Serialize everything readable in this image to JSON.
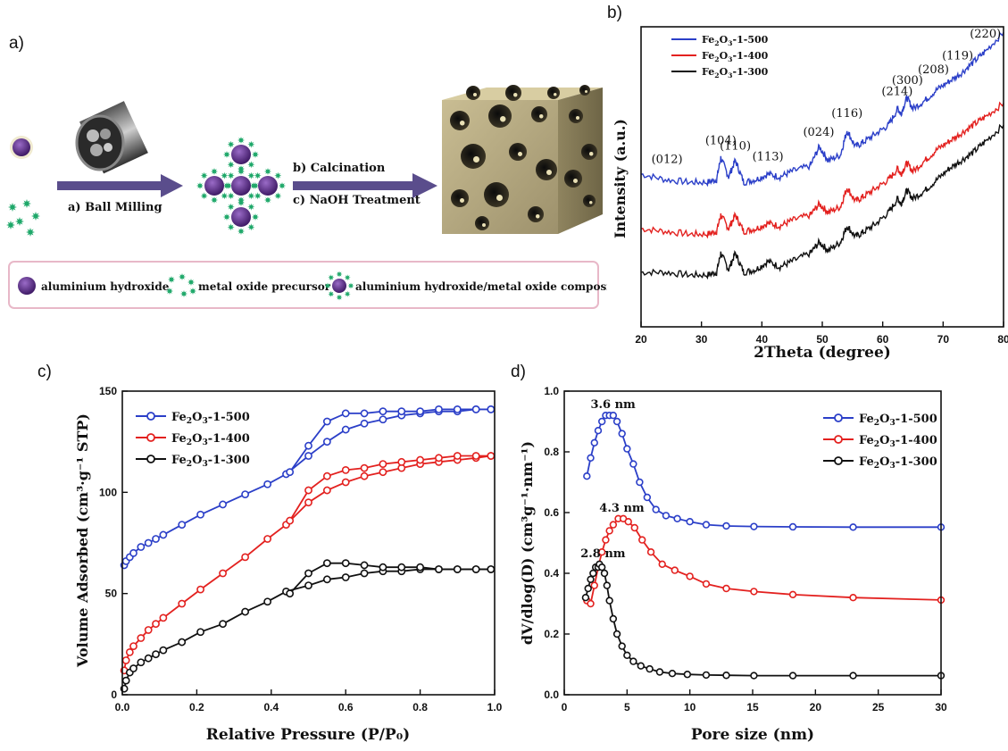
{
  "panels": {
    "a": "a)",
    "b": "b)",
    "c": "c)",
    "d": "d)"
  },
  "schematic": {
    "step1": "a) Ball Milling",
    "step2": "b) Calcination",
    "step3": "c) NaOH Treatment",
    "legend": [
      {
        "label": "aluminium hydroxide",
        "icon": "purple-sphere-icon"
      },
      {
        "label": "metal oxide precursor",
        "icon": "green-star-cluster-icon"
      },
      {
        "label": "aluminium hydroxide/metal oxide composite",
        "icon": "composite-particle-icon"
      }
    ],
    "colors": {
      "sphere": "#5b2e86",
      "star": "#1fa86a",
      "arrow": "#5a4d8c",
      "block": "#a99d78"
    }
  },
  "colors": {
    "s500": "#2b3fc8",
    "s400": "#e3211f",
    "s300": "#111111"
  },
  "chart_data": [
    {
      "id": "b",
      "type": "line",
      "xlabel": "2Theta (degree)",
      "ylabel": "Intensity (a.u.)",
      "xlim": [
        20,
        80
      ],
      "xticks": [
        20,
        30,
        40,
        50,
        60,
        70,
        80
      ],
      "grid": false,
      "legend_position": "top-left",
      "series": [
        {
          "name": "Fe2O3-1-500",
          "x": [
            20,
            24,
            28,
            31,
            32.5,
            33.2,
            34.5,
            35.6,
            37,
            39,
            41,
            43,
            45,
            48,
            49.5,
            51,
            53,
            54.1,
            55.5,
            57,
            59,
            61,
            62.5,
            63,
            64,
            65,
            67,
            69,
            71,
            73,
            75,
            77,
            80
          ],
          "y": [
            0.56,
            0.54,
            0.53,
            0.53,
            0.54,
            0.62,
            0.55,
            0.61,
            0.53,
            0.54,
            0.56,
            0.55,
            0.57,
            0.59,
            0.66,
            0.61,
            0.63,
            0.72,
            0.66,
            0.68,
            0.71,
            0.74,
            0.8,
            0.78,
            0.84,
            0.8,
            0.83,
            0.87,
            0.9,
            0.93,
            0.97,
            1.01,
            1.08
          ]
        },
        {
          "name": "Fe2O3-1-400",
          "x": [
            20,
            24,
            28,
            31,
            32.5,
            33.2,
            34.5,
            35.6,
            37,
            39,
            41,
            43,
            45,
            48,
            49.5,
            51,
            53,
            54.1,
            55.5,
            57,
            59,
            61,
            62.5,
            63,
            64,
            65,
            67,
            69,
            71,
            73,
            75,
            77,
            80
          ],
          "y": [
            0.36,
            0.35,
            0.34,
            0.34,
            0.35,
            0.41,
            0.36,
            0.41,
            0.35,
            0.36,
            0.38,
            0.37,
            0.39,
            0.41,
            0.45,
            0.42,
            0.44,
            0.51,
            0.46,
            0.48,
            0.51,
            0.54,
            0.58,
            0.56,
            0.6,
            0.57,
            0.61,
            0.65,
            0.68,
            0.71,
            0.74,
            0.77,
            0.82
          ]
        },
        {
          "name": "Fe2O3-1-300",
          "x": [
            20,
            24,
            28,
            31,
            32.5,
            33.2,
            34.5,
            35.6,
            37,
            39,
            41,
            43,
            45,
            48,
            49.5,
            51,
            53,
            54.1,
            55.5,
            57,
            59,
            61,
            62.5,
            63,
            64,
            65,
            67,
            69,
            71,
            73,
            75,
            77,
            80
          ],
          "y": [
            0.2,
            0.2,
            0.19,
            0.19,
            0.2,
            0.27,
            0.21,
            0.27,
            0.2,
            0.21,
            0.24,
            0.22,
            0.24,
            0.27,
            0.31,
            0.28,
            0.31,
            0.37,
            0.33,
            0.35,
            0.38,
            0.42,
            0.47,
            0.45,
            0.5,
            0.47,
            0.5,
            0.54,
            0.58,
            0.61,
            0.64,
            0.68,
            0.74
          ]
        }
      ],
      "annotations": [
        {
          "text": "(012)",
          "x": 24.3,
          "y": 0.6
        },
        {
          "text": "(104)",
          "x": 33.2,
          "y": 0.67
        },
        {
          "text": "(110)",
          "x": 35.6,
          "y": 0.65
        },
        {
          "text": "(113)",
          "x": 41,
          "y": 0.61
        },
        {
          "text": "(024)",
          "x": 49.4,
          "y": 0.7
        },
        {
          "text": "(116)",
          "x": 54.1,
          "y": 0.77
        },
        {
          "text": "(214)",
          "x": 62.4,
          "y": 0.85
        },
        {
          "text": "(300)",
          "x": 64.1,
          "y": 0.89
        },
        {
          "text": "(208)",
          "x": 68.4,
          "y": 0.93
        },
        {
          "text": "(119)",
          "x": 72.4,
          "y": 0.98
        },
        {
          "text": "(220)",
          "x": 77,
          "y": 1.06
        }
      ]
    },
    {
      "id": "c",
      "type": "line",
      "xlabel": "Relative Pressure (P/P₀)",
      "ylabel": "Volume Adsorbed  (cm³·g⁻¹ STP)",
      "xlim": [
        0,
        1
      ],
      "ylim": [
        0,
        150
      ],
      "xticks": [
        0.0,
        0.2,
        0.4,
        0.6,
        0.8,
        1.0
      ],
      "yticks": [
        0,
        50,
        100,
        150
      ],
      "legend_position": "top-left",
      "series": [
        {
          "name": "Fe2O3-1-500",
          "branch": "adsorption",
          "x": [
            0.005,
            0.01,
            0.02,
            0.03,
            0.05,
            0.07,
            0.09,
            0.11,
            0.16,
            0.21,
            0.27,
            0.33,
            0.39,
            0.44,
            0.5,
            0.55,
            0.6,
            0.65,
            0.7,
            0.75,
            0.8,
            0.85,
            0.9,
            0.95,
            0.99
          ],
          "y": [
            64,
            66,
            68,
            70,
            73,
            75,
            77,
            79,
            84,
            89,
            94,
            99,
            104,
            109,
            118,
            125,
            131,
            134,
            136,
            138,
            139,
            140,
            140,
            141,
            141
          ]
        },
        {
          "name": "Fe2O3-1-500",
          "branch": "desorption",
          "x": [
            0.99,
            0.95,
            0.9,
            0.85,
            0.8,
            0.75,
            0.7,
            0.65,
            0.6,
            0.55,
            0.5,
            0.45
          ],
          "y": [
            141,
            141,
            141,
            141,
            140,
            140,
            140,
            139,
            139,
            135,
            123,
            110
          ]
        },
        {
          "name": "Fe2O3-1-400",
          "branch": "adsorption",
          "x": [
            0.005,
            0.01,
            0.02,
            0.03,
            0.05,
            0.07,
            0.09,
            0.11,
            0.16,
            0.21,
            0.27,
            0.33,
            0.39,
            0.44,
            0.5,
            0.55,
            0.6,
            0.65,
            0.7,
            0.75,
            0.8,
            0.85,
            0.9,
            0.95,
            0.99
          ],
          "y": [
            12,
            17,
            21,
            24,
            28,
            32,
            35,
            38,
            45,
            52,
            60,
            68,
            77,
            84,
            95,
            101,
            105,
            108,
            110,
            112,
            114,
            115,
            116,
            117,
            118
          ]
        },
        {
          "name": "Fe2O3-1-400",
          "branch": "desorption",
          "x": [
            0.99,
            0.95,
            0.9,
            0.85,
            0.8,
            0.75,
            0.7,
            0.65,
            0.6,
            0.55,
            0.5,
            0.45
          ],
          "y": [
            118,
            118,
            118,
            117,
            116,
            115,
            114,
            112,
            111,
            108,
            101,
            86
          ]
        },
        {
          "name": "Fe2O3-1-300",
          "branch": "adsorption",
          "x": [
            0.005,
            0.01,
            0.02,
            0.03,
            0.05,
            0.07,
            0.09,
            0.11,
            0.16,
            0.21,
            0.27,
            0.33,
            0.39,
            0.44,
            0.5,
            0.55,
            0.6,
            0.65,
            0.7,
            0.75,
            0.8,
            0.85,
            0.9,
            0.95,
            0.99
          ],
          "y": [
            3,
            7,
            11,
            13,
            16,
            18,
            20,
            22,
            26,
            31,
            35,
            41,
            46,
            51,
            54,
            57,
            58,
            60,
            61,
            61,
            62,
            62,
            62,
            62,
            62
          ]
        },
        {
          "name": "Fe2O3-1-300",
          "branch": "desorption",
          "x": [
            0.99,
            0.95,
            0.9,
            0.85,
            0.8,
            0.75,
            0.7,
            0.65,
            0.6,
            0.55,
            0.5,
            0.45
          ],
          "y": [
            62,
            62,
            62,
            62,
            63,
            63,
            63,
            64,
            65,
            65,
            60,
            50
          ]
        }
      ]
    },
    {
      "id": "d",
      "type": "line",
      "xlabel": "Pore size (nm)",
      "ylabel": "dV/dlog(D)  (cm³g⁻¹·nm⁻¹)",
      "xlim": [
        0,
        30
      ],
      "ylim": [
        0,
        1.0
      ],
      "xticks": [
        0,
        5,
        10,
        15,
        20,
        25,
        30
      ],
      "yticks": [
        0.0,
        0.2,
        0.4,
        0.6,
        0.8,
        1.0
      ],
      "legend_position": "top-right",
      "series": [
        {
          "name": "Fe2O3-1-500",
          "x": [
            1.8,
            2.1,
            2.4,
            2.7,
            3.0,
            3.3,
            3.6,
            3.9,
            4.2,
            4.6,
            5.0,
            5.5,
            6.0,
            6.6,
            7.3,
            8.1,
            9.0,
            10.0,
            11.3,
            12.9,
            15.1,
            18.2,
            23.0,
            30.0
          ],
          "y": [
            0.72,
            0.78,
            0.83,
            0.87,
            0.9,
            0.92,
            0.92,
            0.92,
            0.9,
            0.86,
            0.81,
            0.76,
            0.7,
            0.65,
            0.61,
            0.59,
            0.58,
            0.57,
            0.56,
            0.556,
            0.554,
            0.553,
            0.552,
            0.552
          ]
        },
        {
          "name": "Fe2O3-1-400",
          "x": [
            1.8,
            2.1,
            2.4,
            2.7,
            3.0,
            3.3,
            3.6,
            3.9,
            4.3,
            4.7,
            5.1,
            5.6,
            6.2,
            6.9,
            7.8,
            8.8,
            10.0,
            11.3,
            12.9,
            15.1,
            18.2,
            23.0,
            30.0
          ],
          "y": [
            0.31,
            0.3,
            0.36,
            0.42,
            0.47,
            0.51,
            0.54,
            0.56,
            0.58,
            0.58,
            0.57,
            0.55,
            0.51,
            0.47,
            0.43,
            0.41,
            0.39,
            0.365,
            0.35,
            0.34,
            0.33,
            0.32,
            0.312
          ]
        },
        {
          "name": "Fe2O3-1-300",
          "x": [
            1.7,
            1.9,
            2.1,
            2.3,
            2.5,
            2.7,
            2.8,
            3.0,
            3.2,
            3.4,
            3.6,
            3.9,
            4.2,
            4.6,
            5.0,
            5.5,
            6.1,
            6.8,
            7.6,
            8.6,
            9.8,
            11.3,
            12.9,
            15.1,
            18.2,
            23.0,
            30.0
          ],
          "y": [
            0.32,
            0.35,
            0.38,
            0.4,
            0.42,
            0.42,
            0.43,
            0.42,
            0.4,
            0.36,
            0.31,
            0.25,
            0.2,
            0.16,
            0.13,
            0.11,
            0.095,
            0.085,
            0.075,
            0.07,
            0.067,
            0.065,
            0.064,
            0.063,
            0.063,
            0.063,
            0.063
          ]
        }
      ],
      "annotations": [
        {
          "text": "3.6 nm",
          "x": 3.6,
          "y": 0.92
        },
        {
          "text": "4.3 nm",
          "x": 4.3,
          "y": 0.58
        },
        {
          "text": "2.8 nm",
          "x": 2.8,
          "y": 0.43
        }
      ]
    }
  ]
}
